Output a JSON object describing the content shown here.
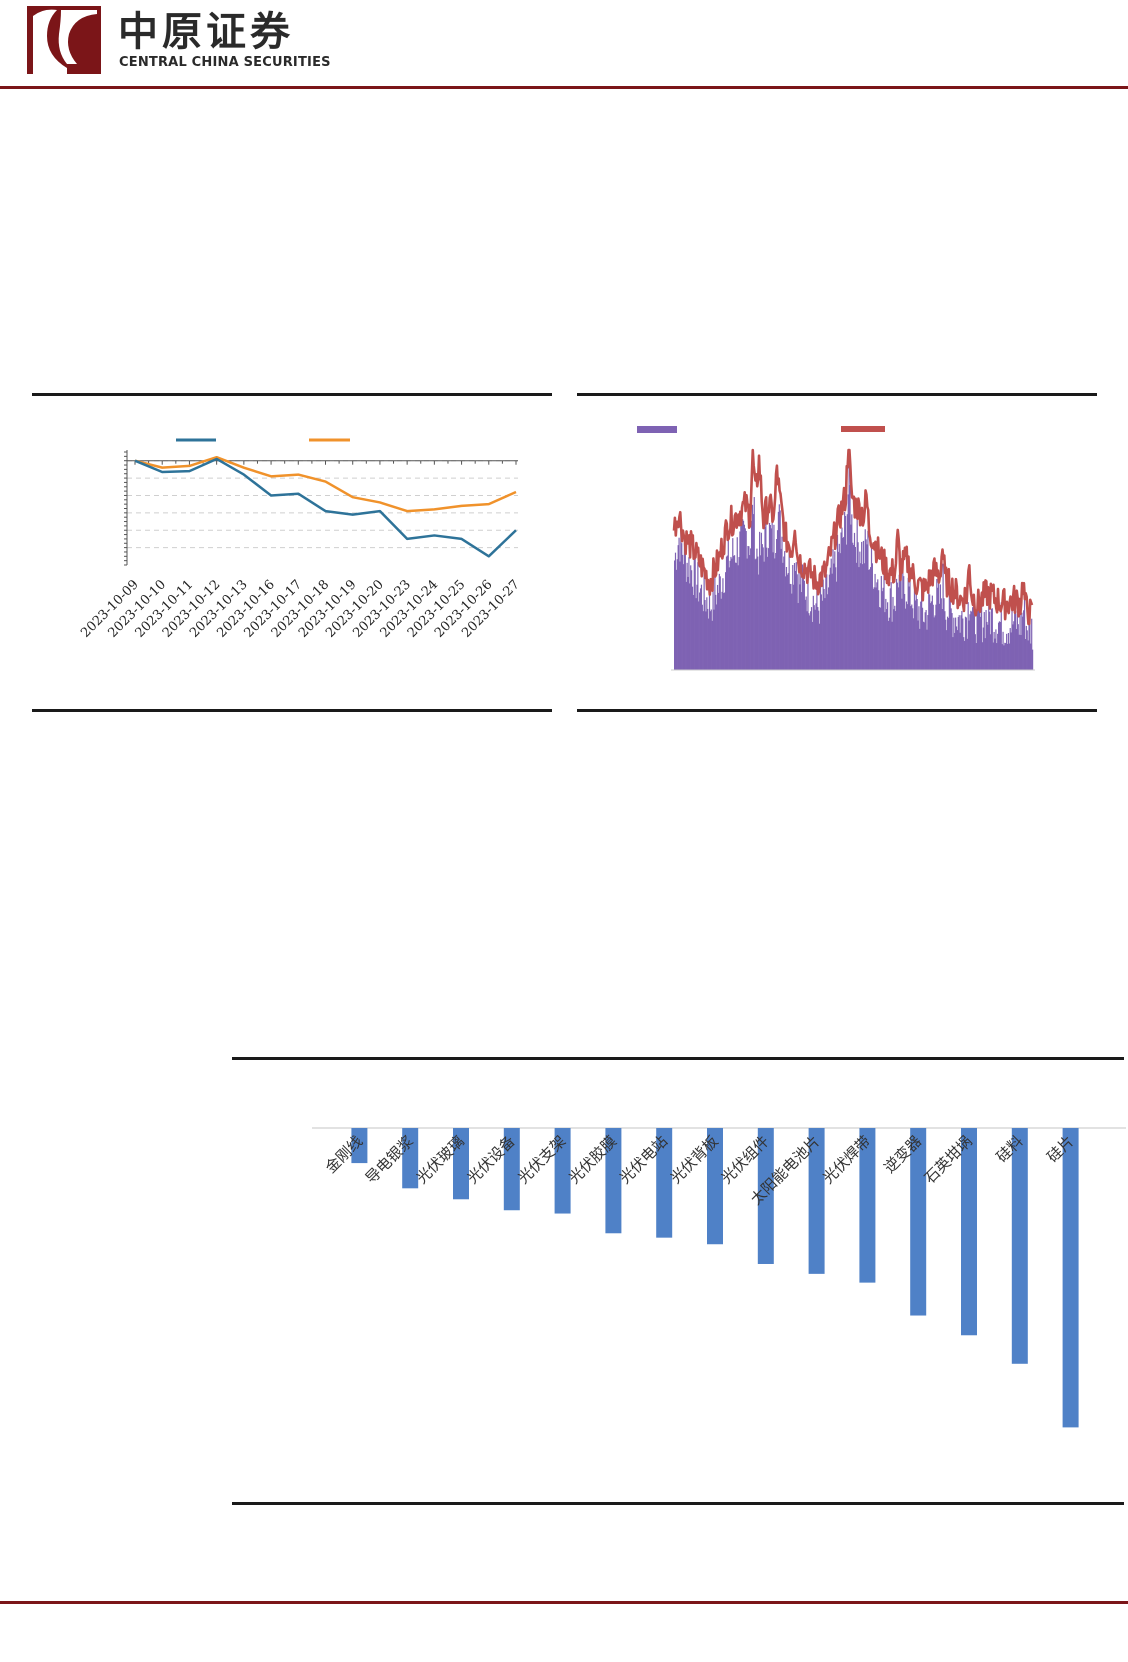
{
  "header": {
    "brand_cn": "中原证券",
    "brand_en": "CENTRAL CHINA SECURITIES"
  },
  "colors": {
    "brand": "#7b1518",
    "line_blue": "#2e7399",
    "line_orange": "#f0922b",
    "bar_purple": "#7e62b3",
    "line_red": "#c0504d",
    "bar_blue": "#4f81c7"
  },
  "chart_data": [
    {
      "type": "line",
      "x": [
        "2023-10-09",
        "2023-10-10",
        "2023-10-11",
        "2023-10-12",
        "2023-10-13",
        "2023-10-16",
        "2023-10-17",
        "2023-10-18",
        "2023-10-19",
        "2023-10-20",
        "2023-10-23",
        "2023-10-24",
        "2023-10-25",
        "2023-10-26",
        "2023-10-27"
      ],
      "series": [
        {
          "color": "#2e7399",
          "values": [
            0,
            -6.5,
            -6,
            1,
            -8,
            -20,
            -19,
            -29,
            -31,
            -29,
            -45,
            -43,
            -45,
            -55,
            -40
          ]
        },
        {
          "color": "#f0922b",
          "values": [
            0,
            -4,
            -3,
            2,
            -4,
            -9,
            -8,
            -12,
            -21,
            -24,
            -29,
            -28,
            -26,
            -25,
            -18
          ]
        }
      ],
      "legend_position": "top",
      "grid": true,
      "ylim": [
        -60,
        5
      ]
    },
    {
      "type": "bar",
      "series_types": [
        "bar",
        "line"
      ],
      "colors": [
        "#7e62b3",
        "#c0504d"
      ],
      "legend_position": "top",
      "grid": false,
      "ylim": [
        0,
        100
      ],
      "x_range": [
        0,
        400
      ],
      "anchors_bar": [
        [
          0,
          50
        ],
        [
          5,
          60
        ],
        [
          12,
          50
        ],
        [
          20,
          45
        ],
        [
          30,
          35
        ],
        [
          40,
          30
        ],
        [
          50,
          38
        ],
        [
          60,
          50
        ],
        [
          70,
          55
        ],
        [
          80,
          62
        ],
        [
          88,
          55
        ],
        [
          95,
          52
        ],
        [
          105,
          63
        ],
        [
          112,
          58
        ],
        [
          118,
          65
        ],
        [
          125,
          50
        ],
        [
          132,
          45
        ],
        [
          140,
          40
        ],
        [
          150,
          35
        ],
        [
          160,
          28
        ],
        [
          170,
          35
        ],
        [
          180,
          48
        ],
        [
          188,
          60
        ],
        [
          195,
          72
        ],
        [
          202,
          60
        ],
        [
          210,
          54
        ],
        [
          220,
          48
        ],
        [
          230,
          38
        ],
        [
          240,
          32
        ],
        [
          250,
          33
        ],
        [
          260,
          38
        ],
        [
          270,
          28
        ],
        [
          280,
          25
        ],
        [
          290,
          33
        ],
        [
          300,
          30
        ],
        [
          310,
          25
        ],
        [
          320,
          23
        ],
        [
          330,
          26
        ],
        [
          340,
          22
        ],
        [
          350,
          25
        ],
        [
          360,
          22
        ],
        [
          370,
          20
        ],
        [
          380,
          22
        ],
        [
          390,
          21
        ],
        [
          400,
          18
        ]
      ],
      "anchors_line": [
        [
          0,
          64
        ],
        [
          5,
          72
        ],
        [
          12,
          60
        ],
        [
          20,
          56
        ],
        [
          30,
          48
        ],
        [
          40,
          40
        ],
        [
          50,
          50
        ],
        [
          60,
          66
        ],
        [
          70,
          70
        ],
        [
          80,
          75
        ],
        [
          88,
          68
        ],
        [
          95,
          95
        ],
        [
          100,
          68
        ],
        [
          105,
          75
        ],
        [
          112,
          70
        ],
        [
          118,
          78
        ],
        [
          125,
          60
        ],
        [
          132,
          55
        ],
        [
          140,
          50
        ],
        [
          150,
          45
        ],
        [
          160,
          40
        ],
        [
          170,
          45
        ],
        [
          180,
          62
        ],
        [
          188,
          74
        ],
        [
          195,
          84
        ],
        [
          202,
          75
        ],
        [
          210,
          72
        ],
        [
          220,
          62
        ],
        [
          230,
          52
        ],
        [
          240,
          44
        ],
        [
          250,
          45
        ],
        [
          260,
          50
        ],
        [
          270,
          40
        ],
        [
          280,
          36
        ],
        [
          290,
          45
        ],
        [
          300,
          42
        ],
        [
          310,
          38
        ],
        [
          320,
          32
        ],
        [
          330,
          35
        ],
        [
          340,
          30
        ],
        [
          350,
          35
        ],
        [
          360,
          32
        ],
        [
          370,
          30
        ],
        [
          380,
          32
        ],
        [
          390,
          30
        ],
        [
          400,
          25
        ]
      ],
      "spikes": [
        [
          88,
          30
        ],
        [
          115,
          18
        ],
        [
          195,
          22
        ],
        [
          215,
          12
        ],
        [
          135,
          15
        ],
        [
          250,
          15
        ],
        [
          300,
          14
        ],
        [
          330,
          12
        ],
        [
          390,
          10
        ]
      ]
    },
    {
      "type": "bar",
      "categories": [
        "金刚线",
        "导电银浆",
        "光伏玻璃",
        "光伏设备",
        "光伏支架",
        "光伏胶膜",
        "光伏电站",
        "光伏背板",
        "光伏组件",
        "太阳能电池片",
        "光伏焊带",
        "逆变器",
        "石英坩埚",
        "硅料",
        "硅片"
      ],
      "values": [
        -3.2,
        -5.5,
        -6.5,
        -7.5,
        -7.8,
        -9.6,
        -10,
        -10.6,
        -12.4,
        -13.3,
        -14.1,
        -17.1,
        -18.9,
        -21.5,
        -27.3
      ],
      "grid": false,
      "ylim": [
        -30,
        0
      ]
    }
  ]
}
